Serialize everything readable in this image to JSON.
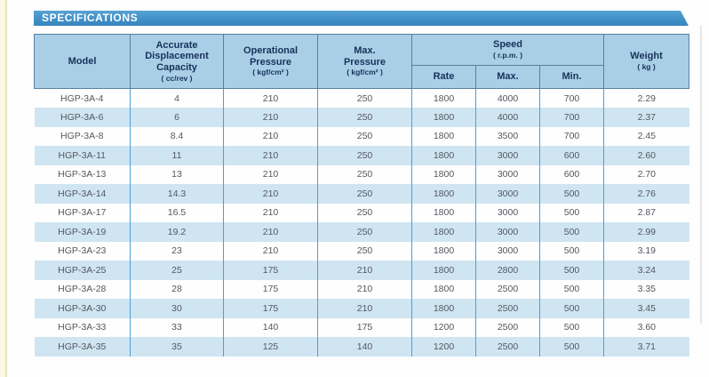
{
  "banner": {
    "title": "SPECIFICATIONS"
  },
  "colors": {
    "banner_blue": "#4191c9",
    "header_bg": "#a9cfe6",
    "header_border": "#57809f",
    "header_text": "#17325a",
    "stripe_blue": "#cfe5f2",
    "grid_blue": "#4f9ed3",
    "data_text": "#53585e",
    "left_stripe": "#faf7e4"
  },
  "table": {
    "header": {
      "model": {
        "label": "Model"
      },
      "capacity": {
        "label": "Accurate Displacement Capacity",
        "unit": "( cc/rev )"
      },
      "op_pressure": {
        "label": "Operational Pressure",
        "unit": "( kgf/cm² )"
      },
      "max_pressure": {
        "label": "Max. Pressure",
        "unit": "( kgf/cm² )"
      },
      "speed": {
        "label": "Speed",
        "unit": "( r.p.m. )"
      },
      "speed_sub": {
        "rate": "Rate",
        "max": "Max.",
        "min": "Min."
      },
      "weight": {
        "label": "Weight",
        "unit": "( kg )"
      }
    },
    "column_ids": [
      "model",
      "capacity",
      "op-pressure",
      "max-pressure",
      "speed-rate",
      "speed-max",
      "speed-min",
      "weight"
    ],
    "rows": [
      [
        "HGP-3A-4",
        "4",
        "210",
        "250",
        "1800",
        "4000",
        "700",
        "2.29"
      ],
      [
        "HGP-3A-6",
        "6",
        "210",
        "250",
        "1800",
        "4000",
        "700",
        "2.37"
      ],
      [
        "HGP-3A-8",
        "8.4",
        "210",
        "250",
        "1800",
        "3500",
        "700",
        "2.45"
      ],
      [
        "HGP-3A-11",
        "11",
        "210",
        "250",
        "1800",
        "3000",
        "600",
        "2.60"
      ],
      [
        "HGP-3A-13",
        "13",
        "210",
        "250",
        "1800",
        "3000",
        "600",
        "2.70"
      ],
      [
        "HGP-3A-14",
        "14.3",
        "210",
        "250",
        "1800",
        "3000",
        "500",
        "2.76"
      ],
      [
        "HGP-3A-17",
        "16.5",
        "210",
        "250",
        "1800",
        "3000",
        "500",
        "2.87"
      ],
      [
        "HGP-3A-19",
        "19.2",
        "210",
        "250",
        "1800",
        "3000",
        "500",
        "2.99"
      ],
      [
        "HGP-3A-23",
        "23",
        "210",
        "250",
        "1800",
        "3000",
        "500",
        "3.19"
      ],
      [
        "HGP-3A-25",
        "25",
        "175",
        "210",
        "1800",
        "2800",
        "500",
        "3.24"
      ],
      [
        "HGP-3A-28",
        "28",
        "175",
        "210",
        "1800",
        "2500",
        "500",
        "3.35"
      ],
      [
        "HGP-3A-30",
        "30",
        "175",
        "210",
        "1800",
        "2500",
        "500",
        "3.45"
      ],
      [
        "HGP-3A-33",
        "33",
        "140",
        "175",
        "1200",
        "2500",
        "500",
        "3.60"
      ],
      [
        "HGP-3A-35",
        "35",
        "125",
        "140",
        "1200",
        "2500",
        "500",
        "3.71"
      ]
    ]
  }
}
